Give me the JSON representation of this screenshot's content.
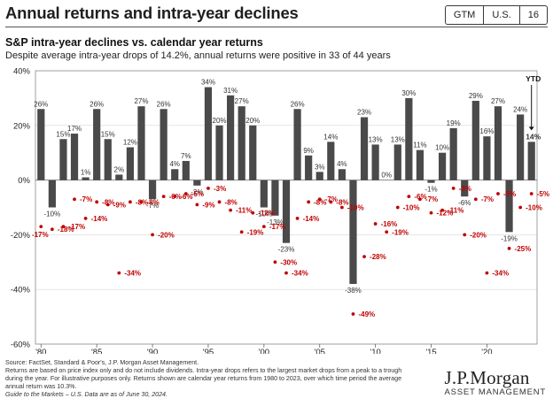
{
  "header": {
    "title": "Annual returns and intra-year declines",
    "badges": [
      "GTM",
      "U.S.",
      "16"
    ]
  },
  "chart_data": {
    "type": "bar",
    "title": "S&P intra-year declines vs. calendar year returns",
    "subtitle": "Despite average intra-year drops of 14.2%, annual returns were positive in 33 of 44 years",
    "years": [
      1980,
      1981,
      1982,
      1983,
      1984,
      1985,
      1986,
      1987,
      1988,
      1989,
      1990,
      1991,
      1992,
      1993,
      1994,
      1995,
      1996,
      1997,
      1998,
      1999,
      2000,
      2001,
      2002,
      2003,
      2004,
      2005,
      2006,
      2007,
      2008,
      2009,
      2010,
      2011,
      2012,
      2013,
      2014,
      2015,
      2016,
      2017,
      2018,
      2019,
      2020,
      2021,
      2022,
      2023,
      2024
    ],
    "series": [
      {
        "values": [
          26,
          -10,
          15,
          17,
          1,
          26,
          15,
          2,
          12,
          27,
          -7,
          26,
          4,
          7,
          -2,
          34,
          20,
          31,
          27,
          20,
          -10,
          -13,
          -23,
          26,
          9,
          3,
          14,
          4,
          -38,
          23,
          13,
          0,
          13,
          30,
          11,
          -1,
          10,
          19,
          -6,
          29,
          16,
          27,
          -19,
          24,
          14
        ]
      },
      {
        "values": [
          -17,
          -18,
          -17,
          -7,
          -14,
          -8,
          -9,
          -34,
          -8,
          -8,
          -20,
          -6,
          -6,
          -5,
          -9,
          -3,
          -8,
          -11,
          -19,
          -12,
          -17,
          -30,
          -34,
          -14,
          -8,
          -7,
          -8,
          -10,
          -49,
          -28,
          -16,
          -19,
          -10,
          -6,
          -7,
          -12,
          -11,
          -3,
          -20,
          -7,
          -34,
          -5,
          -25,
          -10,
          -5
        ]
      }
    ],
    "bar_labels": [
      "26%",
      "-10%",
      "15%",
      "17%",
      "1%",
      "26%",
      "15%",
      "2%",
      "12%",
      "27%",
      "-7%",
      "26%",
      "4%",
      "7%",
      "-2%",
      "34%",
      "20%",
      "31%",
      "27%",
      "20%",
      "-10%",
      "-13%",
      "-23%",
      "26%",
      "9%",
      "3%",
      "14%",
      "4%",
      "-38%",
      "23%",
      "13%",
      "0%",
      "13%",
      "30%",
      "11%",
      "-1%",
      "10%",
      "19%",
      "-6%",
      "29%",
      "16%",
      "27%",
      "-19%",
      "24%",
      "14%"
    ],
    "dot_labels": [
      "-17%",
      "-18%",
      "-17%",
      "-7%",
      "-14%",
      "-8%",
      "-9%",
      "-34%",
      "-8%",
      "-8%",
      "-20%",
      "-6%",
      "-6%",
      "-5%",
      "-9%",
      "-3%",
      "-8%",
      "-11%",
      "-19%",
      "-12%",
      "-17%",
      "-30%",
      "-34%",
      "-14%",
      "-8%",
      "-7%",
      "-8%",
      "-10%",
      "-49%",
      "-28%",
      "-16%",
      "-19%",
      "-10%",
      "-6%",
      "-7%",
      "-12%",
      "-11%",
      "-3%",
      "-20%",
      "-7%",
      "-34%",
      "-5%",
      "-25%",
      "-10%",
      "-5%"
    ],
    "x_ticks": [
      "'80",
      "'85",
      "'90",
      "'95",
      "'00",
      "'05",
      "'10",
      "'15",
      "'20"
    ],
    "y_ticks": [
      "40%",
      "20%",
      "0%",
      "-20%",
      "-40%",
      "-60%"
    ],
    "ylim": [
      -60,
      40
    ],
    "ytd_label": "YTD",
    "colors": {
      "bar": "#4a4a4a",
      "dot": "#c00000",
      "dot_label": "#c00000"
    }
  },
  "footnotes": [
    "Source: FactSet, Standard & Poor's, J.P. Morgan Asset Management.",
    "Returns are based on price index only and do not include dividends. Intra-year drops refers to the largest market drops from a peak to a trough",
    "during the year. For illustrative purposes only. Returns shown are calendar year returns from 1980 to 2023, over which time period the average",
    "annual return was 10.3%.",
    "Guide to the Markets – U.S. Data are as of June 30, 2024."
  ],
  "logo": {
    "name": "J.P.Morgan",
    "sub": "ASSET MANAGEMENT"
  }
}
